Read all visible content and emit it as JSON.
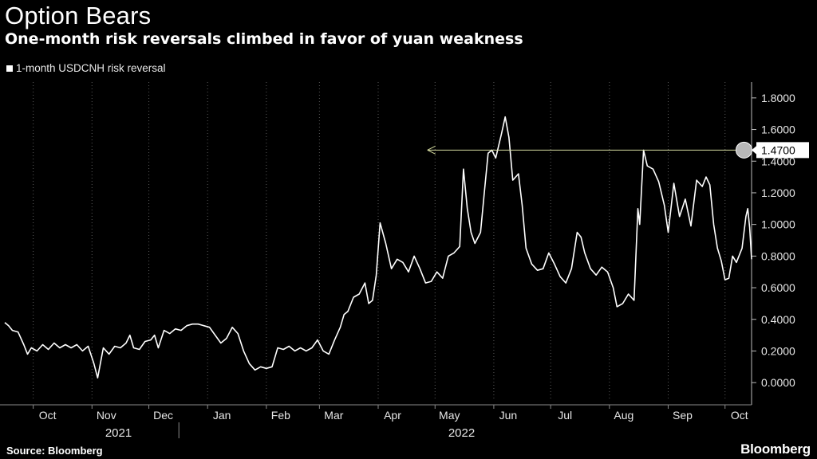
{
  "header": {
    "title": "Option Bears",
    "subtitle": "One-month risk reversals climbed in favor of yuan weakness"
  },
  "footer": {
    "source": "Source: Bloomberg",
    "brand": "Bloomberg"
  },
  "colors": {
    "background": "#000000",
    "line": "#ffffff",
    "grid": "#5a5a5a",
    "arrow": "#d6dca0",
    "callout": "#ffffff"
  },
  "chart_data": {
    "type": "line",
    "title": "Option Bears",
    "subtitle": "One-month risk reversals climbed in favor of yuan weakness",
    "legend": [
      "1-month USDCNH risk reversal"
    ],
    "legend_position": "top-left",
    "y_axis_side": "right",
    "ylim": [
      -0.1,
      1.9
    ],
    "y_ticks": [
      "0.0000",
      "0.2000",
      "0.4000",
      "0.6000",
      "0.8000",
      "1.0000",
      "1.2000",
      "1.4000",
      "1.6000",
      "1.8000"
    ],
    "x_range": [
      "2021-09-16",
      "2022-10-15"
    ],
    "x_ticks": [
      "Oct",
      "Nov",
      "Dec",
      "Jan",
      "Feb",
      "Mar",
      "Apr",
      "May",
      "Jun",
      "Jul",
      "Aug",
      "Sep",
      "Oct"
    ],
    "x_tick_dates": [
      "2021-10-01",
      "2021-11-01",
      "2021-12-01",
      "2022-01-01",
      "2022-02-01",
      "2022-03-01",
      "2022-04-01",
      "2022-05-01",
      "2022-06-01",
      "2022-07-01",
      "2022-08-01",
      "2022-09-01",
      "2022-10-01"
    ],
    "year_labels": [
      {
        "label": "2021",
        "date": "2021-11-15"
      },
      {
        "label": "2022",
        "date": "2022-05-15"
      }
    ],
    "year_divider_date": "2022-01-01",
    "grid": "vertical dotted",
    "annotation": {
      "label": "1.4700",
      "value": 1.47,
      "arrow_from_date": "2022-04-27",
      "arrow_to_date": "2022-10-11"
    },
    "series": [
      {
        "name": "1-month USDCNH risk reversal",
        "points": [
          [
            "2021-09-16",
            0.38
          ],
          [
            "2021-09-18",
            0.36
          ],
          [
            "2021-09-20",
            0.33
          ],
          [
            "2021-09-23",
            0.32
          ],
          [
            "2021-09-26",
            0.24
          ],
          [
            "2021-09-28",
            0.18
          ],
          [
            "2021-09-30",
            0.22
          ],
          [
            "2021-10-03",
            0.2
          ],
          [
            "2021-10-06",
            0.24
          ],
          [
            "2021-10-09",
            0.21
          ],
          [
            "2021-10-12",
            0.25
          ],
          [
            "2021-10-15",
            0.22
          ],
          [
            "2021-10-18",
            0.24
          ],
          [
            "2021-10-21",
            0.22
          ],
          [
            "2021-10-24",
            0.24
          ],
          [
            "2021-10-27",
            0.2
          ],
          [
            "2021-10-30",
            0.23
          ],
          [
            "2021-11-02",
            0.12
          ],
          [
            "2021-11-04",
            0.03
          ],
          [
            "2021-11-07",
            0.22
          ],
          [
            "2021-11-10",
            0.18
          ],
          [
            "2021-11-13",
            0.23
          ],
          [
            "2021-11-16",
            0.22
          ],
          [
            "2021-11-19",
            0.25
          ],
          [
            "2021-11-21",
            0.3
          ],
          [
            "2021-11-23",
            0.22
          ],
          [
            "2021-11-26",
            0.21
          ],
          [
            "2021-11-29",
            0.26
          ],
          [
            "2021-12-02",
            0.27
          ],
          [
            "2021-12-04",
            0.3
          ],
          [
            "2021-12-06",
            0.22
          ],
          [
            "2021-12-09",
            0.33
          ],
          [
            "2021-12-12",
            0.31
          ],
          [
            "2021-12-15",
            0.34
          ],
          [
            "2021-12-18",
            0.33
          ],
          [
            "2021-12-21",
            0.36
          ],
          [
            "2021-12-24",
            0.37
          ],
          [
            "2021-12-27",
            0.37
          ],
          [
            "2021-12-30",
            0.36
          ],
          [
            "2022-01-02",
            0.35
          ],
          [
            "2022-01-05",
            0.3
          ],
          [
            "2022-01-08",
            0.25
          ],
          [
            "2022-01-11",
            0.28
          ],
          [
            "2022-01-14",
            0.35
          ],
          [
            "2022-01-17",
            0.31
          ],
          [
            "2022-01-20",
            0.2
          ],
          [
            "2022-01-23",
            0.12
          ],
          [
            "2022-01-26",
            0.08
          ],
          [
            "2022-01-29",
            0.1
          ],
          [
            "2022-02-01",
            0.09
          ],
          [
            "2022-02-04",
            0.1
          ],
          [
            "2022-02-07",
            0.22
          ],
          [
            "2022-02-10",
            0.21
          ],
          [
            "2022-02-13",
            0.23
          ],
          [
            "2022-02-16",
            0.2
          ],
          [
            "2022-02-19",
            0.22
          ],
          [
            "2022-02-22",
            0.2
          ],
          [
            "2022-02-25",
            0.22
          ],
          [
            "2022-02-28",
            0.27
          ],
          [
            "2022-03-03",
            0.2
          ],
          [
            "2022-03-06",
            0.18
          ],
          [
            "2022-03-09",
            0.27
          ],
          [
            "2022-03-12",
            0.35
          ],
          [
            "2022-03-14",
            0.43
          ],
          [
            "2022-03-16",
            0.45
          ],
          [
            "2022-03-19",
            0.54
          ],
          [
            "2022-03-22",
            0.56
          ],
          [
            "2022-03-25",
            0.63
          ],
          [
            "2022-03-27",
            0.5
          ],
          [
            "2022-03-29",
            0.52
          ],
          [
            "2022-03-31",
            0.68
          ],
          [
            "2022-04-02",
            1.01
          ],
          [
            "2022-04-05",
            0.88
          ],
          [
            "2022-04-08",
            0.72
          ],
          [
            "2022-04-11",
            0.78
          ],
          [
            "2022-04-14",
            0.76
          ],
          [
            "2022-04-17",
            0.7
          ],
          [
            "2022-04-20",
            0.8
          ],
          [
            "2022-04-23",
            0.72
          ],
          [
            "2022-04-26",
            0.63
          ],
          [
            "2022-04-29",
            0.64
          ],
          [
            "2022-05-02",
            0.7
          ],
          [
            "2022-05-05",
            0.66
          ],
          [
            "2022-05-08",
            0.8
          ],
          [
            "2022-05-11",
            0.82
          ],
          [
            "2022-05-14",
            0.86
          ],
          [
            "2022-05-16",
            1.35
          ],
          [
            "2022-05-18",
            1.1
          ],
          [
            "2022-05-20",
            0.95
          ],
          [
            "2022-05-22",
            0.88
          ],
          [
            "2022-05-25",
            0.95
          ],
          [
            "2022-05-27",
            1.2
          ],
          [
            "2022-05-29",
            1.45
          ],
          [
            "2022-05-31",
            1.47
          ],
          [
            "2022-06-02",
            1.42
          ],
          [
            "2022-06-05",
            1.57
          ],
          [
            "2022-06-07",
            1.68
          ],
          [
            "2022-06-09",
            1.55
          ],
          [
            "2022-06-11",
            1.28
          ],
          [
            "2022-06-14",
            1.32
          ],
          [
            "2022-06-16",
            1.12
          ],
          [
            "2022-06-18",
            0.85
          ],
          [
            "2022-06-21",
            0.75
          ],
          [
            "2022-06-24",
            0.71
          ],
          [
            "2022-06-27",
            0.72
          ],
          [
            "2022-06-30",
            0.82
          ],
          [
            "2022-07-03",
            0.75
          ],
          [
            "2022-07-06",
            0.67
          ],
          [
            "2022-07-09",
            0.63
          ],
          [
            "2022-07-12",
            0.72
          ],
          [
            "2022-07-15",
            0.95
          ],
          [
            "2022-07-17",
            0.92
          ],
          [
            "2022-07-19",
            0.82
          ],
          [
            "2022-07-22",
            0.72
          ],
          [
            "2022-07-25",
            0.68
          ],
          [
            "2022-07-28",
            0.73
          ],
          [
            "2022-07-31",
            0.7
          ],
          [
            "2022-08-03",
            0.6
          ],
          [
            "2022-08-05",
            0.48
          ],
          [
            "2022-08-08",
            0.5
          ],
          [
            "2022-08-11",
            0.56
          ],
          [
            "2022-08-14",
            0.52
          ],
          [
            "2022-08-16",
            1.1
          ],
          [
            "2022-08-17",
            1.0
          ],
          [
            "2022-08-19",
            1.47
          ],
          [
            "2022-08-21",
            1.37
          ],
          [
            "2022-08-24",
            1.35
          ],
          [
            "2022-08-27",
            1.27
          ],
          [
            "2022-08-30",
            1.12
          ],
          [
            "2022-09-01",
            0.95
          ],
          [
            "2022-09-04",
            1.26
          ],
          [
            "2022-09-07",
            1.05
          ],
          [
            "2022-09-10",
            1.16
          ],
          [
            "2022-09-13",
            0.99
          ],
          [
            "2022-09-16",
            1.28
          ],
          [
            "2022-09-19",
            1.24
          ],
          [
            "2022-09-21",
            1.3
          ],
          [
            "2022-09-23",
            1.25
          ],
          [
            "2022-09-25",
            1.0
          ],
          [
            "2022-09-27",
            0.85
          ],
          [
            "2022-09-29",
            0.77
          ],
          [
            "2022-10-01",
            0.65
          ],
          [
            "2022-10-03",
            0.66
          ],
          [
            "2022-10-05",
            0.8
          ],
          [
            "2022-10-07",
            0.76
          ],
          [
            "2022-10-10",
            0.85
          ],
          [
            "2022-10-12",
            1.05
          ],
          [
            "2022-10-13",
            1.1
          ],
          [
            "2022-10-14",
            0.98
          ],
          [
            "2022-10-15",
            0.78
          ]
        ]
      }
    ]
  }
}
